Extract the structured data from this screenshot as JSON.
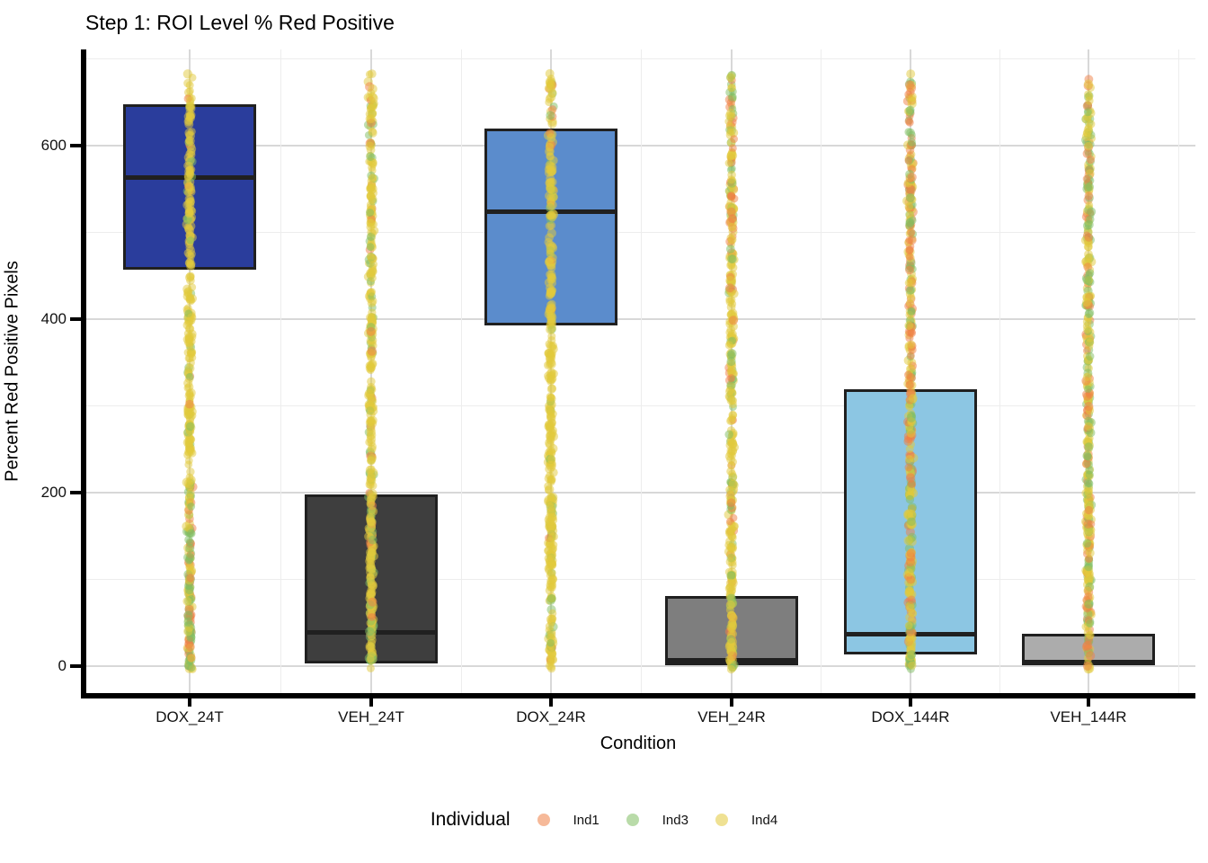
{
  "title": "Step 1: ROI Level % Red Positive",
  "chart_data": {
    "type": "boxplot",
    "title": "Step 1: ROI Level % Red Positive",
    "xlabel": "Condition",
    "ylabel": "Percent Red Positive Pixels",
    "categories": [
      "DOX_24T",
      "VEH_24T",
      "DOX_24R",
      "VEH_24R",
      "DOX_144R",
      "VEH_144R"
    ],
    "y_ticks": [
      0,
      200,
      400,
      600
    ],
    "y_tick_labels": [
      "0",
      "200",
      "400",
      "600"
    ],
    "y_minor_ticks": [
      100,
      300,
      500,
      700
    ],
    "ylim": [
      -35,
      712
    ],
    "grid": "major+minor",
    "legend_position": "bottom",
    "boxes": [
      {
        "condition": "DOX_24T",
        "fill": "#2a3d9c",
        "q1": 457,
        "median": 563,
        "q3": 648
      },
      {
        "condition": "VEH_24T",
        "fill": "#3e3e3e",
        "q1": 3,
        "median": 39,
        "q3": 198
      },
      {
        "condition": "DOX_24R",
        "fill": "#5b8ccc",
        "q1": 393,
        "median": 524,
        "q3": 620
      },
      {
        "condition": "VEH_24R",
        "fill": "#7e7e7e",
        "q1": 1,
        "median": 7,
        "q3": 81
      },
      {
        "condition": "DOX_144R",
        "fill": "#8cc6e3",
        "q1": 13,
        "median": 37,
        "q3": 319
      },
      {
        "condition": "VEH_144R",
        "fill": "#acacac",
        "q1": 1,
        "median": 5,
        "q3": 37
      }
    ],
    "jitter_points": {
      "description": "semi-transparent jittered points per ROI overlaid on each box, values spanning 0 to ~682",
      "value_range": [
        0,
        682
      ],
      "alpha": 0.5,
      "mix_by_region": {
        "DOX_24T": {
          "bottom": [
            0.35,
            0.4,
            0.25
          ],
          "mid": [
            0.92,
            0.06,
            0.02
          ],
          "top": [
            0.85,
            0.1,
            0.05
          ]
        },
        "VEH_24T": {
          "bottom": [
            0.7,
            0.2,
            0.1
          ],
          "mid": [
            0.8,
            0.15,
            0.05
          ],
          "top": [
            0.75,
            0.2,
            0.05
          ]
        },
        "DOX_24R": {
          "bottom": [
            0.75,
            0.18,
            0.07
          ],
          "mid": [
            0.88,
            0.1,
            0.02
          ],
          "top": [
            0.8,
            0.12,
            0.08
          ]
        },
        "VEH_24R": {
          "bottom": [
            0.75,
            0.15,
            0.1
          ],
          "mid": [
            0.7,
            0.2,
            0.1
          ],
          "top": [
            0.65,
            0.2,
            0.15
          ]
        },
        "DOX_144R": {
          "bottom": [
            0.6,
            0.25,
            0.15
          ],
          "mid": [
            0.45,
            0.25,
            0.3
          ],
          "top": [
            0.3,
            0.3,
            0.4
          ]
        },
        "VEH_144R": {
          "bottom": [
            0.55,
            0.25,
            0.2
          ],
          "mid": [
            0.5,
            0.3,
            0.2
          ],
          "top": [
            0.4,
            0.4,
            0.2
          ]
        }
      },
      "mix_order": [
        "Ind4",
        "Ind3",
        "Ind1"
      ]
    },
    "legend": {
      "title": "Individual",
      "entries": [
        {
          "label": "Ind1",
          "color": "#ef8046"
        },
        {
          "label": "Ind3",
          "color": "#7fbe62"
        },
        {
          "label": "Ind4",
          "color": "#e2c93b"
        }
      ]
    }
  },
  "colors": {
    "background": "#ffffff",
    "axis_line": "#000000",
    "box_border": "#202020",
    "median_line": "#202020",
    "grid_major": "#d8d8d8",
    "grid_minor": "#ededed",
    "point_yellow": "#e2c93b",
    "point_green": "#7fbe62",
    "point_orange": "#ef8046"
  }
}
